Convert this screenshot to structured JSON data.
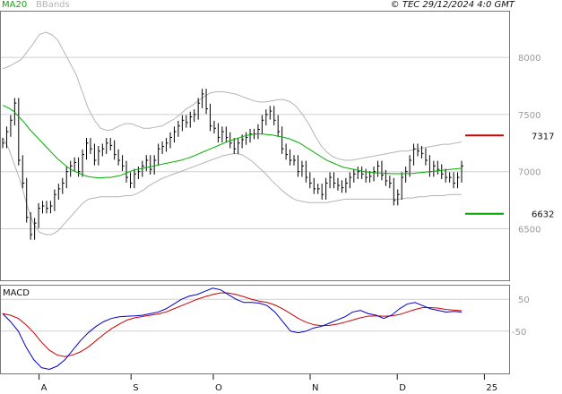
{
  "header": {
    "legend_ma": "MA20",
    "legend_bb": "BBands",
    "copyright": "© TEC 29/12/2024 4:0 GMT",
    "colors": {
      "ma": "#00b000",
      "bb": "#b4b4b4",
      "price": "#000000"
    }
  },
  "chart_data": [
    {
      "type": "line",
      "panel": "price",
      "x_ticks": [
        "A",
        "S",
        "O",
        "N",
        "D",
        "25"
      ],
      "y_ticks": [
        "8000",
        "7500",
        "7000",
        "6500"
      ],
      "ylim": [
        6050,
        8400
      ],
      "annotations": [
        {
          "label": "7317",
          "value": 7317,
          "color": "#cc0000"
        },
        {
          "label": "6632",
          "value": 6632,
          "color": "#00a000"
        }
      ],
      "close": [
        7250,
        7350,
        7450,
        7600,
        7100,
        6900,
        6600,
        6450,
        6550,
        6680,
        6700,
        6680,
        6700,
        6800,
        6850,
        6900,
        7000,
        7050,
        7080,
        7000,
        7150,
        7250,
        7200,
        7100,
        7180,
        7200,
        7250,
        7230,
        7150,
        7100,
        7050,
        6950,
        6900,
        6980,
        7000,
        7050,
        7100,
        7020,
        7100,
        7200,
        7220,
        7250,
        7300,
        7350,
        7400,
        7450,
        7430,
        7480,
        7500,
        7600,
        7680,
        7550,
        7400,
        7380,
        7300,
        7350,
        7300,
        7250,
        7200,
        7250,
        7280,
        7300,
        7330,
        7330,
        7370,
        7450,
        7500,
        7530,
        7450,
        7350,
        7200,
        7150,
        7100,
        7100,
        7000,
        7050,
        6950,
        6900,
        6850,
        6850,
        6800,
        6900,
        6950,
        6900,
        6880,
        6860,
        6900,
        6950,
        6980,
        7000,
        6980,
        6950,
        6960,
        7000,
        7050,
        6970,
        6920,
        6900,
        6750,
        6800,
        6950,
        7000,
        7100,
        7200,
        7180,
        7160,
        7100,
        7000,
        7050,
        7020,
        6980,
        6950,
        6950,
        6900,
        6950,
        7050
      ],
      "ma20": [
        7580,
        7560,
        7530,
        7480,
        7430,
        7370,
        7320,
        7270,
        7220,
        7170,
        7120,
        7080,
        7040,
        7010,
        6990,
        6970,
        6955,
        6950,
        6945,
        6950,
        6950,
        6960,
        6970,
        6990,
        7010,
        7020,
        7030,
        7040,
        7050,
        7060,
        7070,
        7080,
        7090,
        7100,
        7115,
        7130,
        7150,
        7170,
        7190,
        7210,
        7230,
        7250,
        7270,
        7285,
        7300,
        7315,
        7325,
        7330,
        7330,
        7325,
        7320,
        7310,
        7300,
        7290,
        7270,
        7250,
        7220,
        7190,
        7160,
        7130,
        7100,
        7080,
        7060,
        7040,
        7030,
        7020,
        7010,
        7000,
        6995,
        6990,
        6988,
        6985,
        6983,
        6982,
        6982,
        6983,
        6985,
        6990,
        6995,
        7000,
        7005,
        7010,
        7015,
        7020,
        7025,
        7030
      ],
      "bb_upper": [
        7900,
        7920,
        7950,
        7980,
        8050,
        8120,
        8200,
        8220,
        8200,
        8150,
        8050,
        7950,
        7850,
        7700,
        7550,
        7450,
        7380,
        7360,
        7370,
        7400,
        7420,
        7420,
        7400,
        7380,
        7380,
        7390,
        7400,
        7430,
        7460,
        7500,
        7550,
        7580,
        7620,
        7660,
        7690,
        7700,
        7700,
        7690,
        7680,
        7660,
        7640,
        7620,
        7610,
        7610,
        7620,
        7630,
        7630,
        7610,
        7570,
        7500,
        7420,
        7320,
        7230,
        7170,
        7130,
        7110,
        7100,
        7100,
        7110,
        7120,
        7130,
        7140,
        7150,
        7160,
        7170,
        7180,
        7180,
        7190,
        7200,
        7210,
        7220,
        7230,
        7240,
        7240,
        7250,
        7260
      ],
      "bb_lower": [
        7300,
        7200,
        7050,
        6900,
        6700,
        6550,
        6470,
        6450,
        6450,
        6480,
        6540,
        6600,
        6660,
        6720,
        6760,
        6770,
        6780,
        6780,
        6780,
        6780,
        6790,
        6790,
        6810,
        6840,
        6880,
        6910,
        6940,
        6960,
        6980,
        7000,
        7020,
        7040,
        7060,
        7080,
        7100,
        7120,
        7140,
        7150,
        7160,
        7150,
        7120,
        7080,
        7030,
        6980,
        6920,
        6870,
        6820,
        6780,
        6750,
        6740,
        6730,
        6730,
        6730,
        6730,
        6740,
        6750,
        6760,
        6760,
        6760,
        6760,
        6760,
        6760,
        6760,
        6760,
        6760,
        6760,
        6770,
        6770,
        6780,
        6780,
        6790,
        6790,
        6790,
        6800,
        6800,
        6800
      ]
    },
    {
      "type": "line",
      "panel": "macd",
      "title": "MACD",
      "y_ticks": [
        "50",
        "-50"
      ],
      "ylim": [
        -180,
        90
      ],
      "macd": [
        5,
        -20,
        -50,
        -100,
        -140,
        -165,
        -170,
        -160,
        -140,
        -110,
        -80,
        -55,
        -35,
        -20,
        -10,
        -5,
        -3,
        -2,
        0,
        5,
        10,
        20,
        35,
        50,
        60,
        65,
        75,
        85,
        80,
        65,
        50,
        40,
        40,
        38,
        30,
        10,
        -20,
        -50,
        -55,
        -50,
        -40,
        -35,
        -25,
        -15,
        -5,
        10,
        15,
        5,
        0,
        -10,
        0,
        20,
        35,
        40,
        30,
        20,
        15,
        10,
        12,
        10
      ],
      "signal": [
        5,
        0,
        -10,
        -30,
        -55,
        -85,
        -110,
        -125,
        -130,
        -125,
        -115,
        -100,
        -80,
        -60,
        -42,
        -28,
        -15,
        -8,
        -4,
        0,
        4,
        10,
        20,
        30,
        40,
        50,
        58,
        65,
        70,
        70,
        65,
        58,
        50,
        44,
        40,
        32,
        20,
        5,
        -10,
        -22,
        -30,
        -33,
        -32,
        -28,
        -22,
        -15,
        -8,
        -3,
        -2,
        -3,
        -2,
        2,
        10,
        18,
        24,
        24,
        22,
        18,
        16,
        14
      ]
    }
  ]
}
